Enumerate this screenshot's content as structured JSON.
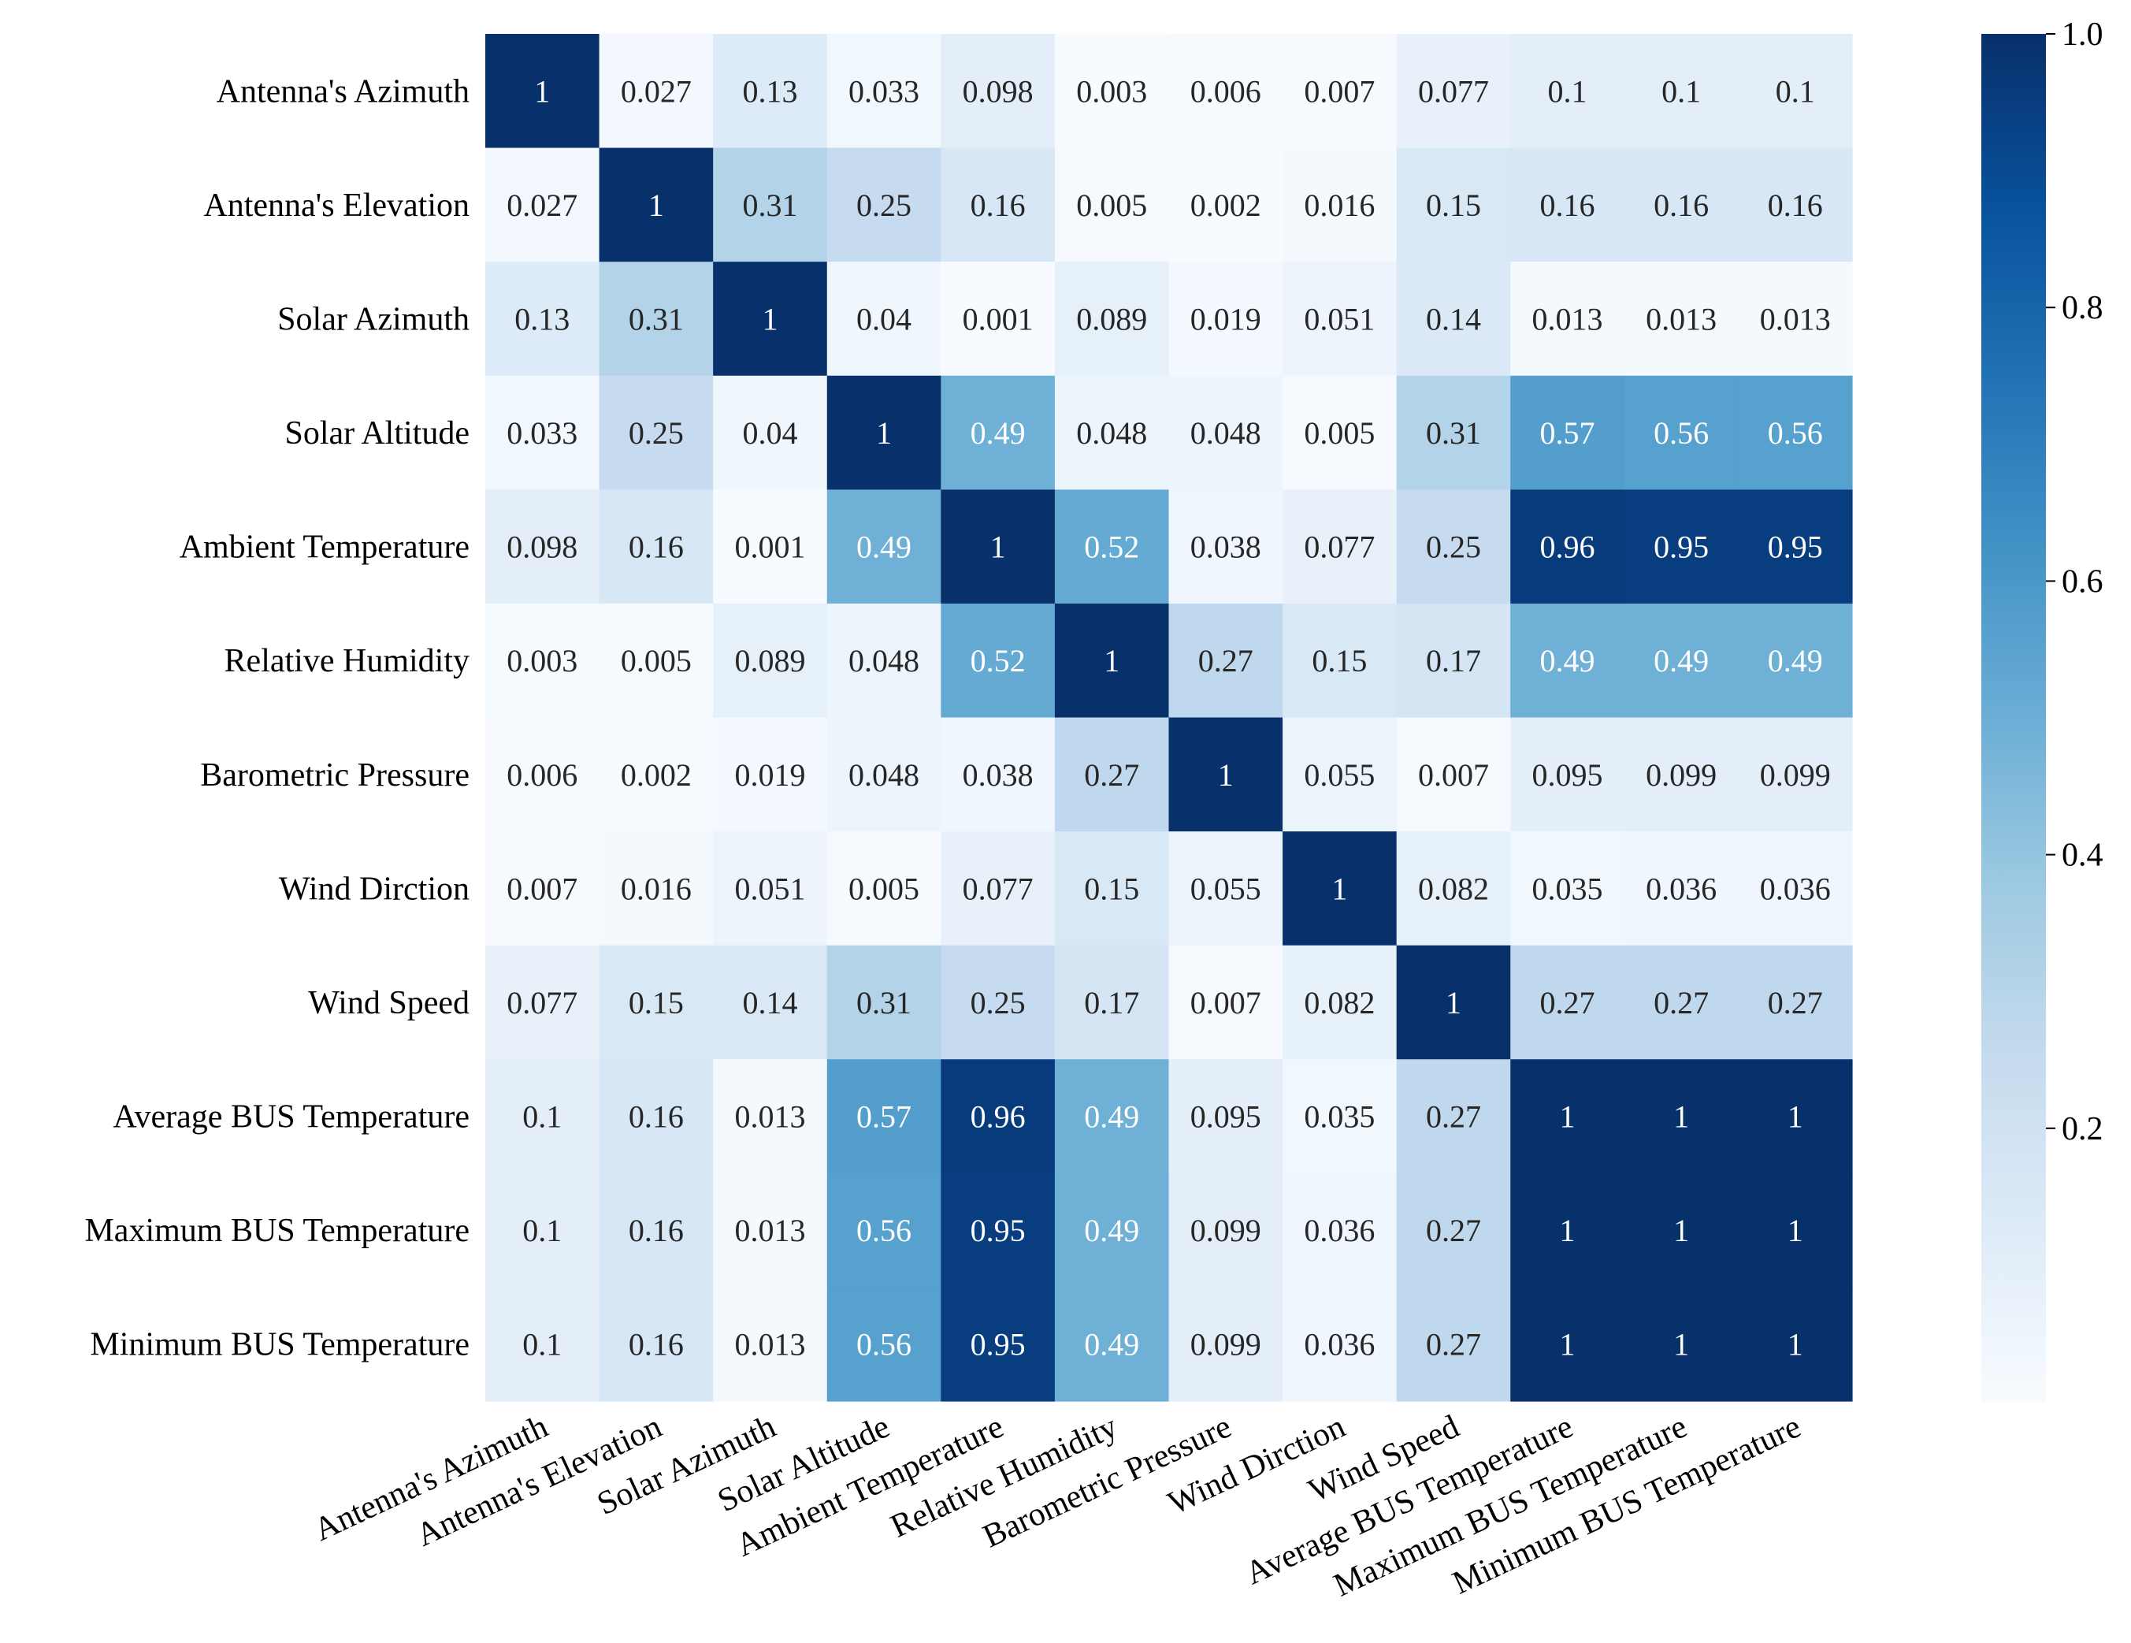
{
  "chart_data": {
    "type": "heatmap",
    "title": "",
    "colormap": "Blues",
    "colormap_stops": [
      "#f7fbff",
      "#deebf7",
      "#c6dbef",
      "#9ecae1",
      "#6baed6",
      "#4292c6",
      "#2171b5",
      "#08519c",
      "#08306b"
    ],
    "vlim": [
      0,
      1
    ],
    "labels": [
      "Antenna's Azimuth",
      "Antenna's Elevation",
      "Solar Azimuth",
      "Solar Altitude",
      "Ambient Temperature",
      "Relative Humidity",
      "Barometric Pressure",
      "Wind Dirction",
      "Wind Speed",
      "Average  BUS Temperature",
      "Maximum BUS Temperature",
      "Minimum BUS Temperature"
    ],
    "matrix": [
      [
        "1",
        "0.027",
        "0.13",
        "0.033",
        "0.098",
        "0.003",
        "0.006",
        "0.007",
        "0.077",
        "0.1",
        "0.1",
        "0.1"
      ],
      [
        "0.027",
        "1",
        "0.31",
        "0.25",
        "0.16",
        "0.005",
        "0.002",
        "0.016",
        "0.15",
        "0.16",
        "0.16",
        "0.16"
      ],
      [
        "0.13",
        "0.31",
        "1",
        "0.04",
        "0.001",
        "0.089",
        "0.019",
        "0.051",
        "0.14",
        "0.013",
        "0.013",
        "0.013"
      ],
      [
        "0.033",
        "0.25",
        "0.04",
        "1",
        "0.49",
        "0.048",
        "0.048",
        "0.005",
        "0.31",
        "0.57",
        "0.56",
        "0.56"
      ],
      [
        "0.098",
        "0.16",
        "0.001",
        "0.49",
        "1",
        "0.52",
        "0.038",
        "0.077",
        "0.25",
        "0.96",
        "0.95",
        "0.95"
      ],
      [
        "0.003",
        "0.005",
        "0.089",
        "0.048",
        "0.52",
        "1",
        "0.27",
        "0.15",
        "0.17",
        "0.49",
        "0.49",
        "0.49"
      ],
      [
        "0.006",
        "0.002",
        "0.019",
        "0.048",
        "0.038",
        "0.27",
        "1",
        "0.055",
        "0.007",
        "0.095",
        "0.099",
        "0.099"
      ],
      [
        "0.007",
        "0.016",
        "0.051",
        "0.005",
        "0.077",
        "0.15",
        "0.055",
        "1",
        "0.082",
        "0.035",
        "0.036",
        "0.036"
      ],
      [
        "0.077",
        "0.15",
        "0.14",
        "0.31",
        "0.25",
        "0.17",
        "0.007",
        "0.082",
        "1",
        "0.27",
        "0.27",
        "0.27"
      ],
      [
        "0.1",
        "0.16",
        "0.013",
        "0.57",
        "0.96",
        "0.49",
        "0.095",
        "0.035",
        "0.27",
        "1",
        "1",
        "1"
      ],
      [
        "0.1",
        "0.16",
        "0.013",
        "0.56",
        "0.95",
        "0.49",
        "0.099",
        "0.036",
        "0.27",
        "1",
        "1",
        "1"
      ],
      [
        "0.1",
        "0.16",
        "0.013",
        "0.56",
        "0.95",
        "0.49",
        "0.099",
        "0.036",
        "0.27",
        "1",
        "1",
        "1"
      ]
    ],
    "colorbar": {
      "ticks": [
        0.2,
        0.4,
        0.6,
        0.8,
        1.0
      ],
      "tick_labels": [
        "0.2",
        "0.4",
        "0.6",
        "0.8",
        "1.0"
      ]
    }
  }
}
